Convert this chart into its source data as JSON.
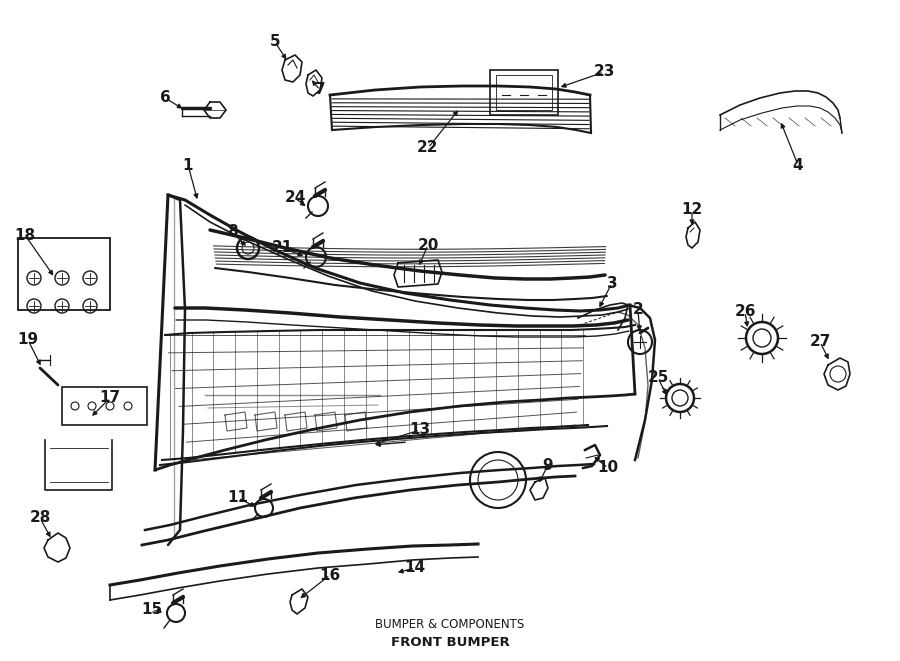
{
  "title": "FRONT BUMPER",
  "subtitle": "BUMPER & COMPONENTS",
  "bg_color": "#ffffff",
  "line_color": "#1a1a1a",
  "fig_width": 9.0,
  "fig_height": 6.61,
  "dpi": 100
}
